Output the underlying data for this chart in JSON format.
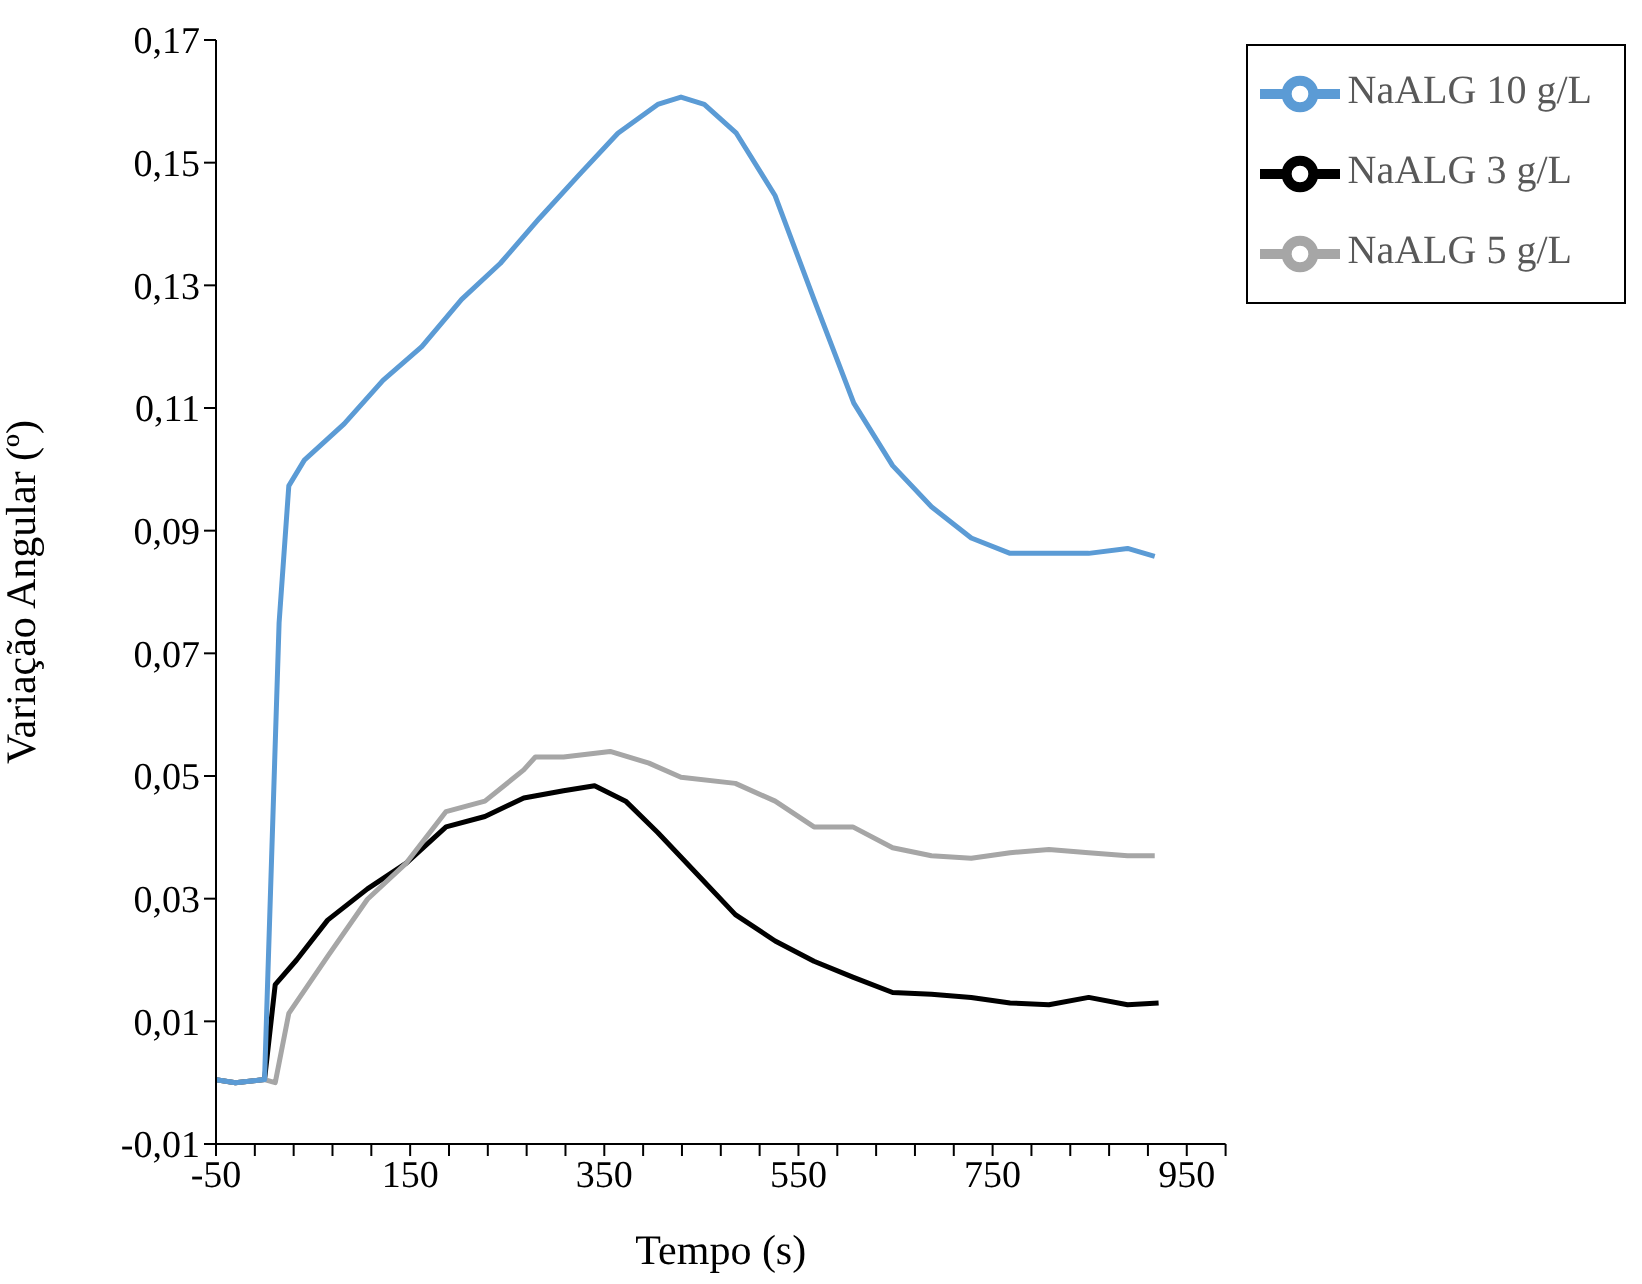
{
  "chart_data": {
    "type": "line",
    "xlabel": "Tempo (s)",
    "ylabel": "Variação  Angular  (º)",
    "xlim": [
      -50,
      990
    ],
    "xticks": [
      -50,
      {
        "value": -10,
        "label": null
      },
      {
        "value": 30,
        "label": null
      },
      {
        "value": 70,
        "label": null
      },
      {
        "value": 110,
        "label": null
      },
      150,
      {
        "value": 190,
        "label": null
      },
      {
        "value": 230,
        "label": null
      },
      {
        "value": 270,
        "label": null
      },
      {
        "value": 310,
        "label": null
      },
      350,
      {
        "value": 390,
        "label": null
      },
      {
        "value": 430,
        "label": null
      },
      {
        "value": 470,
        "label": null
      },
      {
        "value": 510,
        "label": null
      },
      550,
      {
        "value": 590,
        "label": null
      },
      {
        "value": 630,
        "label": null
      },
      {
        "value": 670,
        "label": null
      },
      {
        "value": 710,
        "label": null
      },
      750,
      {
        "value": 790,
        "label": null
      },
      {
        "value": 830,
        "label": null
      },
      {
        "value": 870,
        "label": null
      },
      {
        "value": 910,
        "label": null
      },
      950,
      {
        "value": 990,
        "label": null
      }
    ],
    "ylim": [
      -0.01,
      0.17
    ],
    "yticks": [
      {
        "value": -0.01,
        "label": "-0,01"
      },
      {
        "value": 0.01,
        "label": "0,01"
      },
      {
        "value": 0.03,
        "label": "0,03"
      },
      {
        "value": 0.05,
        "label": "0,05"
      },
      {
        "value": 0.07,
        "label": "0,07"
      },
      {
        "value": 0.09,
        "label": "0,09"
      },
      {
        "value": 0.11,
        "label": "0,11"
      },
      {
        "value": 0.13,
        "label": "0,13"
      },
      {
        "value": 0.15,
        "label": "0,15"
      },
      {
        "value": 0.17,
        "label": "0,17"
      }
    ],
    "grid": false,
    "legend": "top right",
    "marker": "none",
    "line_style": "solid",
    "series": [
      {
        "name": "NaALG 3 g/L",
        "color": "#000000",
        "x": [
          -50,
          -30,
          0,
          11,
          33,
          65,
          106,
          146,
          187,
          227,
          267,
          308,
          340,
          372,
          405,
          445,
          485,
          526,
          566,
          606,
          647,
          687,
          728,
          768,
          808,
          849,
          889,
          921
        ],
        "values": [
          0.0005,
          0,
          0.0005,
          0.016,
          0.02,
          0.0265,
          0.0316,
          0.0358,
          0.0417,
          0.0434,
          0.0464,
          0.0476,
          0.0484,
          0.0459,
          0.0408,
          0.0341,
          0.0274,
          0.0231,
          0.0198,
          0.0172,
          0.0147,
          0.0144,
          0.0139,
          0.013,
          0.0127,
          0.0139,
          0.0127,
          0.013
        ]
      },
      {
        "name": "NaALG 5 g/L",
        "color": "#a6a6a6",
        "x": [
          -50,
          -30,
          0,
          11,
          25,
          65,
          106,
          146,
          187,
          227,
          267,
          279,
          308,
          356,
          396,
          429,
          485,
          526,
          566,
          606,
          647,
          687,
          728,
          768,
          808,
          849,
          889,
          917
        ],
        "values": [
          0.0005,
          0,
          0.0005,
          0,
          0.0113,
          0.0206,
          0.0299,
          0.0358,
          0.0442,
          0.0459,
          0.051,
          0.0531,
          0.0531,
          0.054,
          0.0521,
          0.0498,
          0.0488,
          0.0459,
          0.0417,
          0.0417,
          0.0383,
          0.037,
          0.0366,
          0.0375,
          0.038,
          0.0375,
          0.037,
          0.037
        ]
      },
      {
        "name": "NaALG 10 g/L",
        "color": "#5b9bd5",
        "x": [
          -50,
          -30,
          0,
          15,
          25,
          41,
          82,
          122,
          162,
          203,
          243,
          283,
          324,
          364,
          405,
          429,
          453,
          486,
          526,
          566,
          607,
          647,
          687,
          728,
          768,
          808,
          849,
          889,
          917
        ],
        "values": [
          0.0005,
          0,
          0.0005,
          0.075,
          0.0973,
          0.1015,
          0.1074,
          0.1145,
          0.12,
          0.1277,
          0.1336,
          0.1409,
          0.148,
          0.1548,
          0.1595,
          0.1607,
          0.1595,
          0.1548,
          0.1446,
          0.1277,
          0.1108,
          0.1006,
          0.0939,
          0.0888,
          0.0863,
          0.0863,
          0.0863,
          0.0871,
          0.0858
        ]
      }
    ]
  }
}
